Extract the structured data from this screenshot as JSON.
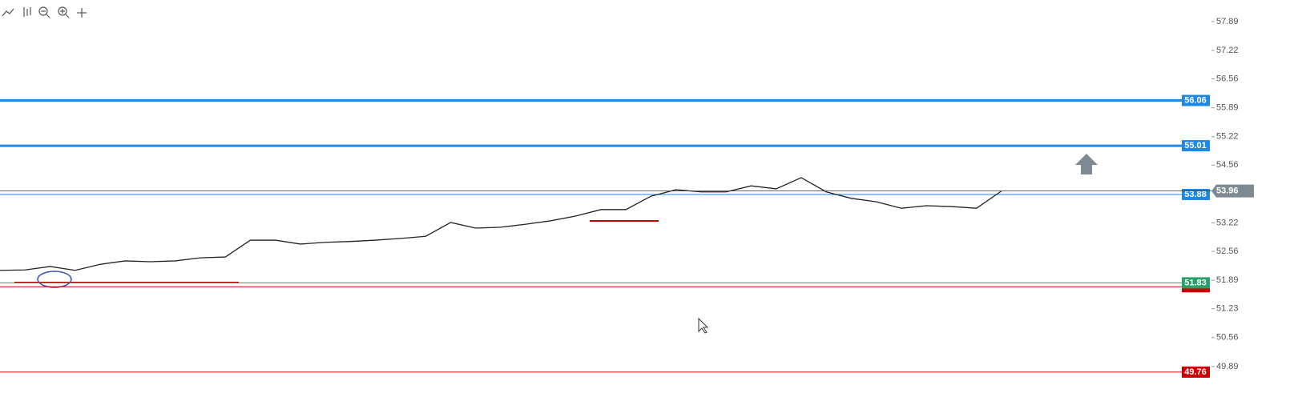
{
  "chart_data": {
    "type": "line",
    "ylim": [
      49.09,
      58.39
    ],
    "yticks": [
      57.89,
      57.22,
      56.56,
      55.89,
      55.22,
      54.56,
      53.22,
      52.56,
      51.89,
      51.23,
      50.56,
      49.89
    ],
    "series": [
      {
        "color": "#222222",
        "values": [
          52.12,
          52.13,
          52.21,
          52.12,
          52.26,
          52.34,
          52.32,
          52.34,
          52.41,
          52.43,
          52.82,
          52.82,
          52.73,
          52.77,
          52.79,
          52.82,
          52.86,
          52.91,
          53.23,
          53.1,
          53.12,
          53.19,
          53.27,
          53.38,
          53.53,
          53.53,
          53.84,
          53.99,
          53.94,
          53.94,
          54.08,
          54.01,
          54.27,
          53.94,
          53.79,
          53.71,
          53.56,
          53.62,
          53.6,
          53.56,
          53.96
        ]
      }
    ],
    "levels": [
      {
        "value": 56.06,
        "color": "#1e88e5",
        "label": true
      },
      {
        "value": 55.01,
        "color": "#1e88e5",
        "label": true
      },
      {
        "value": 53.88,
        "color": "#1e88e5",
        "label": true
      },
      {
        "value": 51.74,
        "color": "#cc0000",
        "label": false
      },
      {
        "value": 51.83,
        "color": "#26a269",
        "label": true
      },
      {
        "value": 49.76,
        "color": "#cc0000",
        "label": true
      }
    ],
    "last_price": 53.96,
    "last_price_color": "#7d8a91"
  }
}
